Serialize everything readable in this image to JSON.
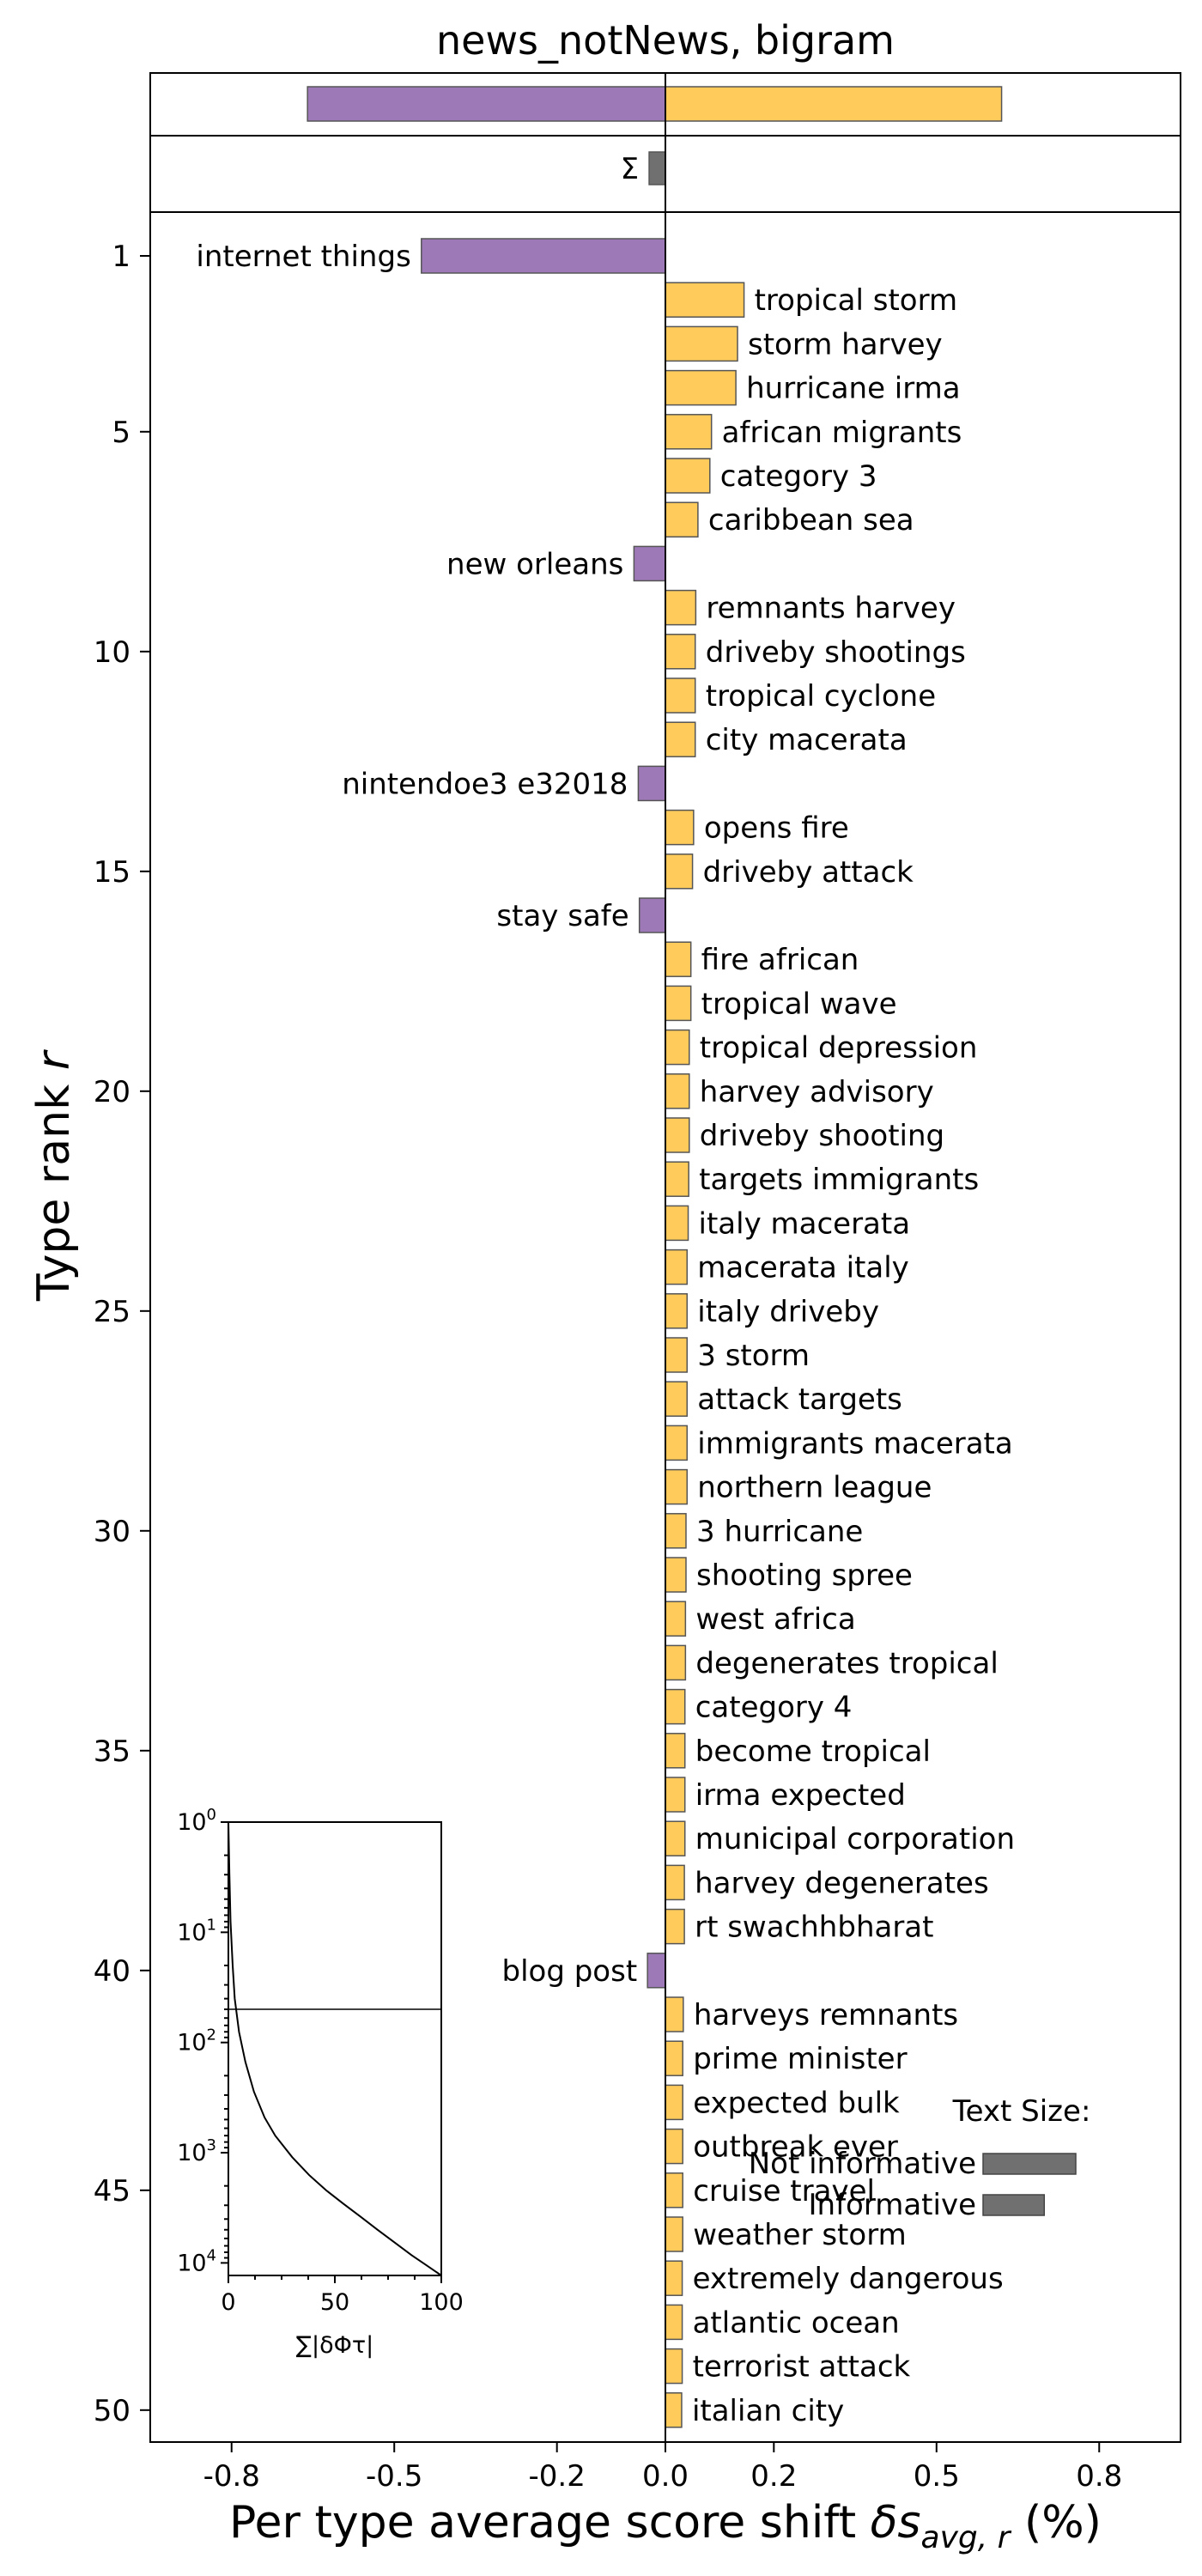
{
  "chart_data": {
    "type": "bar",
    "title": "news_notNews, bigram",
    "xlabel": "Per type average score shift δs_avg,r (%)",
    "xlabel_main": "Per type average score shift ",
    "xlabel_symbol": "δs",
    "xlabel_sub": "avg, r",
    "xlabel_unit": " (%)",
    "ylabel": "Type rank r",
    "ylabel_text": "Type rank ",
    "ylabel_symbol": "r",
    "xlim": [
      -0.95,
      0.95
    ],
    "x_ticks": [
      -0.8,
      -0.5,
      -0.2,
      0.0,
      0.2,
      0.5,
      0.8
    ],
    "x_tick_labels": [
      "-0.8",
      "-0.5",
      "-0.2",
      "0.0",
      "0.2",
      "0.5",
      "0.8"
    ],
    "y_ticks": [
      1,
      5,
      10,
      15,
      20,
      25,
      30,
      35,
      40,
      45,
      50
    ],
    "y_tick_labels": [
      "1",
      "5",
      "10",
      "15",
      "20",
      "25",
      "30",
      "35",
      "40",
      "45",
      "50"
    ],
    "colors": {
      "negative": "#9e79b8",
      "positive": "#ffcc5c",
      "total": "#707070",
      "edge": "#555555"
    },
    "summary": {
      "negative_total": -0.66,
      "positive_total": 0.62,
      "sum": -0.03,
      "sum_label": "Σ"
    },
    "words": [
      {
        "rank": 1,
        "label": "internet things",
        "value": -0.45
      },
      {
        "rank": 2,
        "label": "tropical storm",
        "value": 0.145
      },
      {
        "rank": 3,
        "label": "storm harvey",
        "value": 0.133
      },
      {
        "rank": 4,
        "label": "hurricane irma",
        "value": 0.13
      },
      {
        "rank": 5,
        "label": "african migrants",
        "value": 0.085
      },
      {
        "rank": 6,
        "label": "category 3",
        "value": 0.082
      },
      {
        "rank": 7,
        "label": "caribbean sea",
        "value": 0.06
      },
      {
        "rank": 8,
        "label": "new orleans",
        "value": -0.058
      },
      {
        "rank": 9,
        "label": "remnants harvey",
        "value": 0.056
      },
      {
        "rank": 10,
        "label": "driveby shootings",
        "value": 0.055
      },
      {
        "rank": 11,
        "label": "tropical cyclone",
        "value": 0.055
      },
      {
        "rank": 12,
        "label": "city macerata",
        "value": 0.055
      },
      {
        "rank": 13,
        "label": "nintendoe3 e32018",
        "value": -0.05
      },
      {
        "rank": 14,
        "label": "opens fire",
        "value": 0.052
      },
      {
        "rank": 15,
        "label": "driveby attack",
        "value": 0.05
      },
      {
        "rank": 16,
        "label": "stay safe",
        "value": -0.048
      },
      {
        "rank": 17,
        "label": "fire african",
        "value": 0.047
      },
      {
        "rank": 18,
        "label": "tropical wave",
        "value": 0.047
      },
      {
        "rank": 19,
        "label": "tropical depression",
        "value": 0.044
      },
      {
        "rank": 20,
        "label": "harvey advisory",
        "value": 0.044
      },
      {
        "rank": 21,
        "label": "driveby shooting",
        "value": 0.044
      },
      {
        "rank": 22,
        "label": "targets immigrants",
        "value": 0.043
      },
      {
        "rank": 23,
        "label": "italy macerata",
        "value": 0.042
      },
      {
        "rank": 24,
        "label": "macerata italy",
        "value": 0.04
      },
      {
        "rank": 25,
        "label": "italy driveby",
        "value": 0.04
      },
      {
        "rank": 26,
        "label": "3 storm",
        "value": 0.04
      },
      {
        "rank": 27,
        "label": "attack targets",
        "value": 0.04
      },
      {
        "rank": 28,
        "label": "immigrants macerata",
        "value": 0.04
      },
      {
        "rank": 29,
        "label": "northern league",
        "value": 0.04
      },
      {
        "rank": 30,
        "label": "3 hurricane",
        "value": 0.038
      },
      {
        "rank": 31,
        "label": "shooting spree",
        "value": 0.038
      },
      {
        "rank": 32,
        "label": "west africa",
        "value": 0.037
      },
      {
        "rank": 33,
        "label": "degenerates tropical",
        "value": 0.037
      },
      {
        "rank": 34,
        "label": "category 4",
        "value": 0.036
      },
      {
        "rank": 35,
        "label": "become tropical",
        "value": 0.036
      },
      {
        "rank": 36,
        "label": "irma expected",
        "value": 0.036
      },
      {
        "rank": 37,
        "label": "municipal corporation",
        "value": 0.036
      },
      {
        "rank": 38,
        "label": "harvey degenerates",
        "value": 0.035
      },
      {
        "rank": 39,
        "label": "rt swachhbharat",
        "value": 0.035
      },
      {
        "rank": 40,
        "label": "blog post",
        "value": -0.033
      },
      {
        "rank": 41,
        "label": "harveys remnants",
        "value": 0.033
      },
      {
        "rank": 42,
        "label": "prime minister",
        "value": 0.032
      },
      {
        "rank": 43,
        "label": "expected bulk",
        "value": 0.032
      },
      {
        "rank": 44,
        "label": "outbreak ever",
        "value": 0.032
      },
      {
        "rank": 45,
        "label": "cruise travel",
        "value": 0.032
      },
      {
        "rank": 46,
        "label": "weather storm",
        "value": 0.032
      },
      {
        "rank": 47,
        "label": "extremely dangerous",
        "value": 0.031
      },
      {
        "rank": 48,
        "label": "atlantic ocean",
        "value": 0.031
      },
      {
        "rank": 49,
        "label": "terrorist attack",
        "value": 0.031
      },
      {
        "rank": 50,
        "label": "italian city",
        "value": 0.03
      }
    ],
    "inset": {
      "type": "line",
      "xlabel": "∑|δΦτ|",
      "xlim": [
        0,
        100
      ],
      "x_ticks": [
        0,
        50,
        100
      ],
      "x_tick_labels": [
        "0",
        "50",
        "100"
      ],
      "y_scale": "log",
      "y_ticks": [
        1,
        10,
        100,
        1000,
        10000
      ],
      "y_tick_labels": [
        {
          "base": "10",
          "exp": "0"
        },
        {
          "base": "10",
          "exp": "1"
        },
        {
          "base": "10",
          "exp": "2"
        },
        {
          "base": "10",
          "exp": "3"
        },
        {
          "base": "10",
          "exp": "4"
        }
      ],
      "hline_rank": 50,
      "curve_x": [
        0,
        0.5,
        1,
        2,
        3,
        5,
        8,
        12,
        17,
        22,
        30,
        38,
        46,
        54,
        62,
        70,
        78,
        86,
        93,
        100
      ],
      "curve_rank": [
        1,
        3,
        8,
        20,
        40,
        80,
        150,
        280,
        480,
        700,
        1100,
        1600,
        2200,
        2900,
        3800,
        5000,
        6500,
        8500,
        10500,
        13000
      ]
    },
    "legend": {
      "title": "Text Size:",
      "items": [
        {
          "label": "Not informative",
          "value": 1.0
        },
        {
          "label": "Informative",
          "value": 0.66
        }
      ]
    }
  }
}
